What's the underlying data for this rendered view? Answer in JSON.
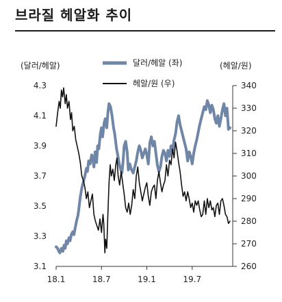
{
  "title": "브라질 헤알화 추이",
  "chart_data": {
    "type": "line",
    "y_left_label": "(달러/헤알)",
    "y_right_label": "(헤알/원)",
    "y_left_ticks": [
      "4.3",
      "4.1",
      "3.9",
      "3.7",
      "3.5",
      "3.3",
      "3.1"
    ],
    "y_right_ticks": [
      "340",
      "330",
      "320",
      "310",
      "300",
      "290",
      "280",
      "270",
      "260"
    ],
    "x_ticks": [
      "18.1",
      "18.7",
      "19.1",
      "19.7"
    ],
    "y_left_range": [
      3.1,
      4.3
    ],
    "y_right_range": [
      260,
      340
    ],
    "legend": {
      "position": "top"
    },
    "series": [
      {
        "name": "달러/헤알 (좌)",
        "axis": "left",
        "color": "#6f86a6",
        "x": [
          0,
          0.2,
          0.35,
          0.5,
          0.7,
          0.9,
          1.05,
          1.2,
          1.35,
          1.5,
          1.7,
          1.85,
          2.0,
          2.2,
          2.35,
          2.5,
          2.7,
          2.9,
          3.05,
          3.2,
          3.4,
          3.6,
          3.8,
          4.0,
          4.15,
          4.3,
          4.5,
          4.7,
          4.85,
          5.0,
          5.15,
          5.35,
          5.5,
          5.65,
          5.85,
          6.0,
          6.15,
          6.35,
          6.5,
          6.7,
          6.85,
          7.0,
          7.2,
          7.4,
          7.6,
          7.75,
          7.9,
          8.0,
          8.15,
          8.35,
          8.5,
          8.7,
          8.85,
          9.0,
          9.2,
          9.4,
          9.55,
          9.75,
          9.9,
          10.0,
          10.2,
          10.4,
          10.6,
          10.8,
          11.0,
          11.2,
          11.4,
          11.6,
          11.8,
          12.0,
          12.2,
          12.4,
          12.6,
          12.8,
          13.0,
          13.2,
          13.4,
          13.6,
          13.8,
          14.0,
          14.2,
          14.4,
          14.6,
          14.8,
          15.0,
          15.2,
          15.4,
          15.6,
          15.8,
          16.0,
          16.2,
          16.4,
          16.6,
          16.8,
          17.0,
          17.2,
          17.4,
          17.6,
          17.8,
          18.0,
          18.2,
          18.4,
          18.6,
          18.8,
          19.0,
          19.2,
          19.4,
          19.6,
          19.8,
          20.0,
          20.2,
          20.4,
          20.6,
          20.8,
          21.0,
          21.2,
          21.4,
          21.6,
          21.8,
          22.0,
          22.2,
          22.4,
          22.6,
          22.8,
          23.0
        ],
        "values": [
          3.23,
          3.22,
          3.2,
          3.19,
          3.22,
          3.2,
          3.24,
          3.22,
          3.27,
          3.25,
          3.29,
          3.27,
          3.31,
          3.33,
          3.31,
          3.35,
          3.4,
          3.44,
          3.5,
          3.56,
          3.62,
          3.66,
          3.7,
          3.75,
          3.73,
          3.8,
          3.78,
          3.84,
          3.82,
          3.76,
          3.86,
          3.79,
          3.9,
          3.88,
          3.98,
          4.02,
          3.96,
          4.05,
          4.08,
          4.02,
          4.12,
          4.18,
          4.16,
          4.1,
          4.02,
          3.98,
          3.92,
          3.88,
          3.84,
          3.78,
          3.75,
          3.72,
          3.79,
          3.9,
          3.93,
          3.86,
          3.74,
          3.78,
          3.75,
          3.74,
          3.72,
          3.76,
          3.8,
          3.86,
          3.9,
          3.87,
          3.82,
          3.85,
          3.88,
          3.84,
          3.78,
          3.92,
          3.96,
          3.9,
          3.93,
          3.85,
          3.77,
          3.73,
          3.76,
          3.83,
          3.87,
          3.85,
          3.8,
          3.87,
          3.83,
          3.9,
          3.87,
          3.94,
          3.98,
          4.06,
          4.1,
          4.04,
          4.0,
          3.96,
          3.92,
          3.88,
          3.8,
          3.86,
          3.83,
          3.78,
          3.85,
          3.9,
          3.94,
          3.99,
          4.04,
          4.08,
          4.12,
          4.16,
          4.14,
          4.2,
          4.17,
          4.12,
          4.17,
          4.14,
          4.08,
          4.05,
          4.1,
          4.03,
          4.08,
          4.14,
          4.18,
          4.1,
          4.15,
          4.01,
          4.02
        ]
      },
      {
        "name": "헤알/원 (우)",
        "axis": "right",
        "color": "#111111",
        "x": [
          0,
          0.2,
          0.4,
          0.55,
          0.7,
          0.85,
          1.0,
          1.2,
          1.35,
          1.5,
          1.7,
          1.9,
          2.05,
          2.2,
          2.4,
          2.6,
          2.8,
          3.0,
          3.2,
          3.4,
          3.6,
          3.8,
          4.0,
          4.2,
          4.4,
          4.6,
          4.8,
          5.0,
          5.2,
          5.4,
          5.6,
          5.8,
          6.0,
          6.2,
          6.3,
          6.45,
          6.55,
          6.7,
          6.85,
          7.0,
          7.15,
          7.3,
          7.5,
          7.7,
          7.9,
          8.05,
          8.2,
          8.4,
          8.6,
          8.8,
          9.0,
          9.2,
          9.4,
          9.6,
          9.8,
          10.0,
          10.2,
          10.4,
          10.6,
          10.8,
          11.0,
          11.2,
          11.4,
          11.6,
          11.8,
          12.0,
          12.2,
          12.4,
          12.6,
          12.8,
          13.0,
          13.2,
          13.4,
          13.6,
          13.8,
          14.0,
          14.2,
          14.4,
          14.6,
          14.8,
          15.0,
          15.2,
          15.4,
          15.6,
          15.8,
          16.0,
          16.2,
          16.4,
          16.6,
          16.8,
          17.0,
          17.2,
          17.4,
          17.6,
          17.8,
          18.0,
          18.2,
          18.4,
          18.6,
          18.8,
          19.0,
          19.2,
          19.4,
          19.6,
          19.8,
          20.0,
          20.2,
          20.4,
          20.6,
          20.8,
          21.0,
          21.2,
          21.4,
          21.6,
          21.8,
          22.0,
          22.2,
          22.4,
          22.6,
          22.8,
          23.0
        ],
        "values": [
          322,
          328,
          333,
          330,
          338,
          335,
          339,
          332,
          336,
          330,
          333,
          325,
          328,
          320,
          322,
          316,
          313,
          310,
          306,
          300,
          298,
          295,
          290,
          293,
          286,
          289,
          292,
          283,
          280,
          278,
          276,
          281,
          275,
          283,
          279,
          266,
          272,
          268,
          283,
          297,
          305,
          300,
          303,
          298,
          305,
          308,
          300,
          296,
          302,
          297,
          292,
          286,
          284,
          288,
          283,
          287,
          294,
          290,
          300,
          304,
          297,
          293,
          289,
          292,
          295,
          297,
          291,
          287,
          293,
          295,
          296,
          290,
          298,
          302,
          297,
          293,
          296,
          298,
          305,
          300,
          307,
          305,
          312,
          308,
          315,
          311,
          306,
          302,
          296,
          291,
          293,
          289,
          293,
          290,
          286,
          288,
          284,
          289,
          287,
          289,
          285,
          282,
          283,
          289,
          283,
          290,
          286,
          289,
          285,
          286,
          282,
          287,
          288,
          283,
          289,
          290,
          287,
          283,
          282,
          279,
          280
        ]
      }
    ]
  }
}
